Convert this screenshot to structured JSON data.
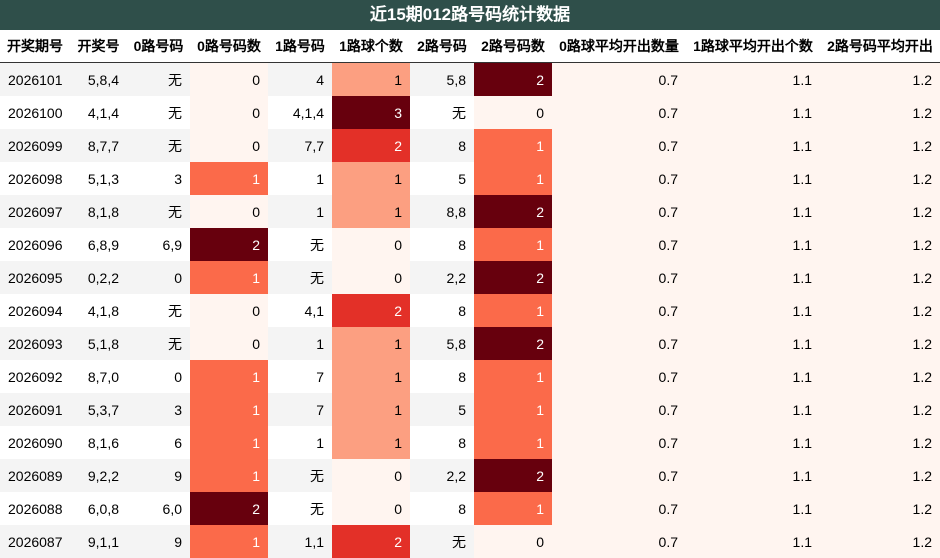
{
  "title": "近15期012路号码统计数据",
  "table": {
    "headers": [
      "开奖期号",
      "开奖号",
      "0路号码",
      "0路号码数",
      "1路号码",
      "1路球个数",
      "2路号码",
      "2路号码数",
      "0路球平均开出数量",
      "1路球平均开出个数",
      "2路号码平均开出"
    ],
    "heat_columns": [
      3,
      5,
      7,
      8,
      9,
      10
    ],
    "rows": [
      [
        "2026101",
        "5,8,4",
        "无",
        0,
        "4",
        1,
        "5,8",
        2,
        0.7,
        1.1,
        1.2
      ],
      [
        "2026100",
        "4,1,4",
        "无",
        0,
        "4,1,4",
        3,
        "无",
        0,
        0.7,
        1.1,
        1.2
      ],
      [
        "2026099",
        "8,7,7",
        "无",
        0,
        "7,7",
        2,
        "8",
        1,
        0.7,
        1.1,
        1.2
      ],
      [
        "2026098",
        "5,1,3",
        "3",
        1,
        "1",
        1,
        "5",
        1,
        0.7,
        1.1,
        1.2
      ],
      [
        "2026097",
        "8,1,8",
        "无",
        0,
        "1",
        1,
        "8,8",
        2,
        0.7,
        1.1,
        1.2
      ],
      [
        "2026096",
        "6,8,9",
        "6,9",
        2,
        "无",
        0,
        "8",
        1,
        0.7,
        1.1,
        1.2
      ],
      [
        "2026095",
        "0,2,2",
        "0",
        1,
        "无",
        0,
        "2,2",
        2,
        0.7,
        1.1,
        1.2
      ],
      [
        "2026094",
        "4,1,8",
        "无",
        0,
        "4,1",
        2,
        "8",
        1,
        0.7,
        1.1,
        1.2
      ],
      [
        "2026093",
        "5,1,8",
        "无",
        0,
        "1",
        1,
        "5,8",
        2,
        0.7,
        1.1,
        1.2
      ],
      [
        "2026092",
        "8,7,0",
        "0",
        1,
        "7",
        1,
        "8",
        1,
        0.7,
        1.1,
        1.2
      ],
      [
        "2026091",
        "5,3,7",
        "3",
        1,
        "7",
        1,
        "5",
        1,
        0.7,
        1.1,
        1.2
      ],
      [
        "2026090",
        "8,1,6",
        "6",
        1,
        "1",
        1,
        "8",
        1,
        0.7,
        1.1,
        1.2
      ],
      [
        "2026089",
        "9,2,2",
        "9",
        1,
        "无",
        0,
        "2,2",
        2,
        0.7,
        1.1,
        1.2
      ],
      [
        "2026088",
        "6,0,8",
        "6,0",
        2,
        "无",
        0,
        "8",
        1,
        0.7,
        1.1,
        1.2
      ],
      [
        "2026087",
        "9,1,1",
        "9",
        1,
        "1,1",
        2,
        "无",
        0,
        0.7,
        1.1,
        1.2
      ]
    ]
  }
}
